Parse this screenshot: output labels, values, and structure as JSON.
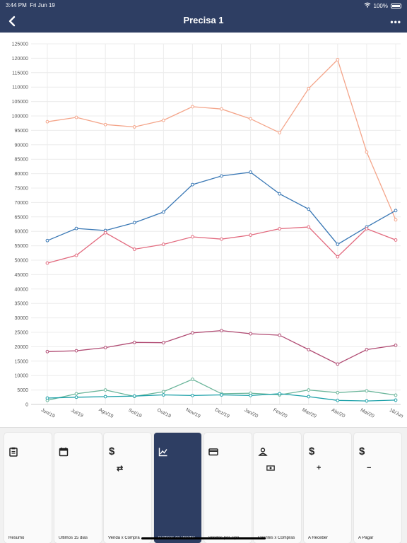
{
  "status": {
    "time": "3:44 PM",
    "date": "Fri Jun 19",
    "battery": "100%"
  },
  "header": {
    "title": "Precisa 1",
    "more": "•••"
  },
  "chart_data": {
    "type": "line",
    "categories": [
      "Jun/19",
      "Jul/19",
      "Ago/19",
      "Set/19",
      "Out/19",
      "Nov/19",
      "Dez/19",
      "Jan/20",
      "Fev/20",
      "Mar/20",
      "Abr/20",
      "Mai/20",
      "16/Jun"
    ],
    "ylim": [
      0,
      125000
    ],
    "yticks": [
      0,
      5000,
      10000,
      15000,
      20000,
      25000,
      30000,
      35000,
      40000,
      45000,
      50000,
      55000,
      60000,
      65000,
      70000,
      75000,
      80000,
      85000,
      90000,
      95000,
      100000,
      105000,
      110000,
      115000,
      120000,
      125000
    ],
    "grid": true,
    "series": [
      {
        "color": "#f4a58a",
        "values": [
          98000,
          99500,
          97000,
          96200,
          98500,
          103200,
          102400,
          99000,
          94200,
          109500,
          119500,
          87500,
          64000
        ]
      },
      {
        "color": "#3a78b5",
        "values": [
          56800,
          61000,
          60300,
          63000,
          66700,
          76200,
          79200,
          80500,
          73000,
          67700,
          55500,
          61500,
          67200
        ]
      },
      {
        "color": "#e26a7e",
        "values": [
          49000,
          51700,
          59500,
          53800,
          55500,
          58100,
          57300,
          58700,
          60900,
          61500,
          51200,
          60900,
          57000
        ]
      },
      {
        "color": "#b04a72",
        "values": [
          18300,
          18600,
          19700,
          21500,
          21400,
          24800,
          25600,
          24500,
          24000,
          19000,
          14000,
          19000,
          20500
        ]
      },
      {
        "color": "#6ab59a",
        "values": [
          1400,
          3700,
          5000,
          2800,
          4400,
          8700,
          3700,
          3900,
          3300,
          5000,
          4100,
          4700,
          3200
        ]
      },
      {
        "color": "#1aa0a8",
        "values": [
          2200,
          2500,
          2700,
          2900,
          3300,
          3100,
          3300,
          3100,
          3700,
          2700,
          1400,
          1200,
          1500
        ]
      }
    ]
  },
  "tabs": [
    {
      "label": "Resumo",
      "icon": "clipboard-icon"
    },
    {
      "label": "Ultimos 15 dias",
      "icon": "calendar-icon"
    },
    {
      "label": "Venda x Compra",
      "icon": "dollar-icon",
      "sub": "⇄"
    },
    {
      "label": "Gráficos de Vendas",
      "icon": "chart-icon"
    },
    {
      "label": "Vendas por Tipo",
      "icon": "credit-card-icon"
    },
    {
      "label": "Clientes x Compras",
      "icon": "person-money-icon"
    },
    {
      "label": "A Receber",
      "icon": "dollar-icon",
      "sub": "+"
    },
    {
      "label": "A Pagar",
      "icon": "dollar-icon",
      "sub": "−"
    }
  ]
}
